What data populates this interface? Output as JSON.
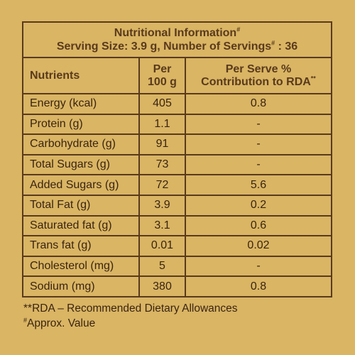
{
  "header": {
    "title": "Nutritional Information",
    "title_mark": "#",
    "serving_prefix": "Serving Size: 3.9 g, Number of Servings",
    "serving_mark": "#",
    "serving_suffix": " : 36"
  },
  "columns": {
    "nutrients": "Nutrients",
    "per100_line1": "Per",
    "per100_line2": "100 g",
    "perserve_line1": "Per Serve %",
    "perserve_line2": "Contribution to RDA",
    "perserve_mark": "**"
  },
  "rows": [
    {
      "name": "Energy (kcal)",
      "per100": "405",
      "rda": "0.8"
    },
    {
      "name": "Protein (g)",
      "per100": "1.1",
      "rda": "-"
    },
    {
      "name": "Carbohydrate (g)",
      "per100": "91",
      "rda": "-"
    },
    {
      "name": "Total Sugars (g)",
      "per100": "73",
      "rda": "-"
    },
    {
      "name": "Added Sugars (g)",
      "per100": "72",
      "rda": "5.6"
    },
    {
      "name": "Total Fat (g)",
      "per100": "3.9",
      "rda": "0.2"
    },
    {
      "name": "Saturated fat (g)",
      "per100": "3.1",
      "rda": "0.6"
    },
    {
      "name": "Trans fat (g)",
      "per100": "0.01",
      "rda": "0.02"
    },
    {
      "name": "Cholesterol (mg)",
      "per100": "5",
      "rda": "-"
    },
    {
      "name": "Sodium (mg)",
      "per100": "380",
      "rda": "0.8"
    }
  ],
  "footnotes": {
    "rda_note": "**RDA – Recommended Dietary Allowances",
    "approx_mark": "#",
    "approx_note": "Approx. Value"
  },
  "colors": {
    "background": "#d9b564",
    "border": "#5a3a1c",
    "heading_text": "#5a3a1c",
    "body_text": "#3b2411"
  }
}
